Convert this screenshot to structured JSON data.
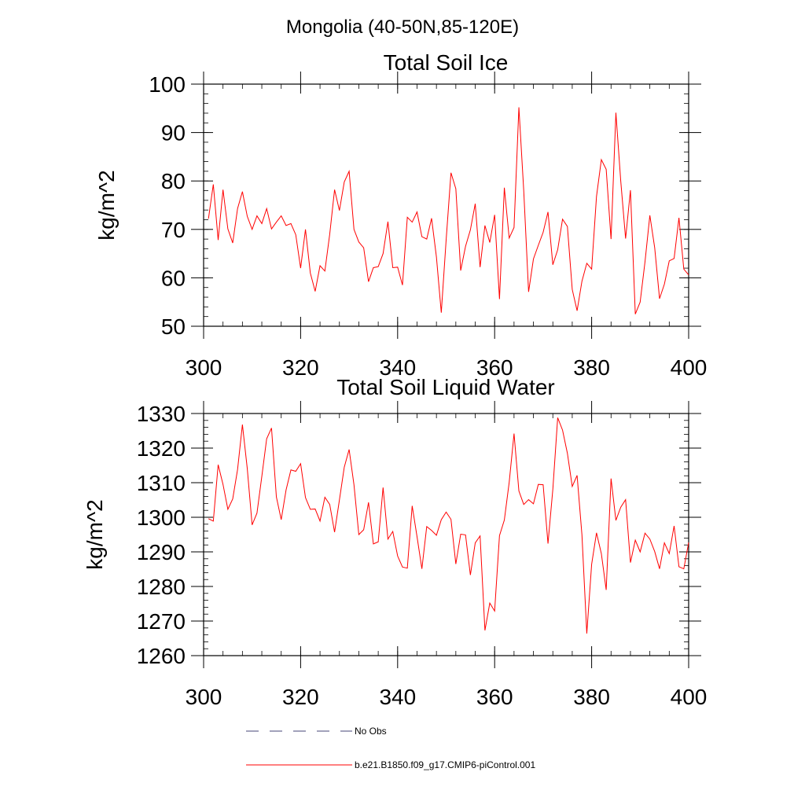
{
  "title": "Mongolia (40-50N,85-120E)",
  "chart_data": [
    {
      "type": "line",
      "title": "Total Soil Ice",
      "ylabel": "kg/m^2",
      "xlabel": "",
      "xlim": [
        300,
        400
      ],
      "ylim": [
        50,
        100
      ],
      "xticks": [
        300,
        320,
        340,
        360,
        380,
        400
      ],
      "yticks": [
        50,
        60,
        70,
        80,
        90,
        100
      ],
      "grid": false,
      "series": [
        {
          "name": "b.e21.B1850.f09_g17.CMIP6-piControl.001",
          "color": "#ff0000",
          "x": [
            301,
            302,
            303,
            304,
            305,
            306,
            307,
            308,
            309,
            310,
            311,
            312,
            313,
            314,
            315,
            316,
            317,
            318,
            319,
            320,
            321,
            322,
            323,
            324,
            325,
            326,
            327,
            328,
            329,
            330,
            331,
            332,
            333,
            334,
            335,
            336,
            337,
            338,
            339,
            340,
            341,
            342,
            343,
            344,
            345,
            346,
            347,
            348,
            349,
            350,
            351,
            352,
            353,
            354,
            355,
            356,
            357,
            358,
            359,
            360,
            361,
            362,
            363,
            364,
            365,
            366,
            367,
            368,
            369,
            370,
            371,
            372,
            373,
            374,
            375,
            376,
            377,
            378,
            379,
            380,
            381,
            382,
            383,
            384,
            385,
            386,
            387,
            388,
            389,
            390,
            391,
            392,
            393,
            394,
            395,
            396,
            397,
            398,
            399,
            400
          ],
          "y": [
            72.2,
            79.3,
            67.8,
            78.2,
            70.1,
            67.2,
            74.3,
            77.8,
            72.7,
            70.0,
            72.8,
            71.2,
            74.3,
            70.1,
            71.5,
            72.8,
            70.8,
            71.2,
            68.9,
            62.0,
            70.0,
            61.0,
            57.2,
            62.5,
            61.4,
            69.0,
            78.2,
            73.9,
            79.8,
            82.0,
            70.0,
            67.4,
            66.2,
            59.2,
            62.1,
            62.3,
            65.0,
            71.6,
            62.1,
            62.2,
            58.5,
            72.5,
            71.5,
            73.6,
            68.5,
            68.0,
            72.3,
            64.3,
            52.8,
            67.8,
            81.7,
            78.4,
            61.5,
            66.5,
            69.9,
            75.3,
            62.2,
            70.8,
            67.3,
            73.0,
            55.6,
            78.6,
            68.2,
            70.4,
            95.2,
            78.0,
            57.1,
            63.9,
            66.7,
            69.4,
            73.6,
            62.7,
            65.8,
            72.1,
            70.6,
            57.6,
            53.2,
            59.3,
            63.0,
            61.8,
            76.8,
            84.4,
            82.4,
            68.0,
            94.1,
            80.0,
            68.1,
            78.1,
            52.5,
            55.0,
            63.3,
            72.9,
            66.2,
            55.7,
            58.7,
            63.5,
            64.0,
            72.4,
            61.8,
            60.6
          ]
        }
      ]
    },
    {
      "type": "line",
      "title": "Total Soil Liquid Water",
      "ylabel": "kg/m^2",
      "xlabel": "",
      "xlim": [
        300,
        400
      ],
      "ylim": [
        1260,
        1330
      ],
      "xticks": [
        300,
        320,
        340,
        360,
        380,
        400
      ],
      "yticks": [
        1260,
        1270,
        1280,
        1290,
        1300,
        1310,
        1320,
        1330
      ],
      "grid": false,
      "series": [
        {
          "name": "b.e21.B1850.f09_g17.CMIP6-piControl.001",
          "color": "#ff0000",
          "x": [
            301,
            302,
            303,
            304,
            305,
            306,
            307,
            308,
            309,
            310,
            311,
            312,
            313,
            314,
            315,
            316,
            317,
            318,
            319,
            320,
            321,
            322,
            323,
            324,
            325,
            326,
            327,
            328,
            329,
            330,
            331,
            332,
            333,
            334,
            335,
            336,
            337,
            338,
            339,
            340,
            341,
            342,
            343,
            344,
            345,
            346,
            347,
            348,
            349,
            350,
            351,
            352,
            353,
            354,
            355,
            356,
            357,
            358,
            359,
            360,
            361,
            362,
            363,
            364,
            365,
            366,
            367,
            368,
            369,
            370,
            371,
            372,
            373,
            374,
            375,
            376,
            377,
            378,
            379,
            380,
            381,
            382,
            383,
            384,
            385,
            386,
            387,
            388,
            389,
            390,
            391,
            392,
            393,
            394,
            395,
            396,
            397,
            398,
            399,
            400
          ],
          "y": [
            1299.6,
            1298.9,
            1315.2,
            1309.5,
            1302.3,
            1305.3,
            1313.8,
            1326.8,
            1314.1,
            1297.8,
            1301.2,
            1311.8,
            1322.7,
            1325.8,
            1305.9,
            1299.3,
            1307.9,
            1313.7,
            1313.3,
            1315.5,
            1305.7,
            1302.3,
            1302.4,
            1298.9,
            1305.8,
            1303.7,
            1295.7,
            1305.0,
            1314.5,
            1319.6,
            1309.4,
            1295.0,
            1296.4,
            1304.3,
            1292.3,
            1292.9,
            1308.6,
            1293.7,
            1295.9,
            1288.8,
            1285.6,
            1285.3,
            1303.3,
            1294.4,
            1285.1,
            1297.3,
            1296.2,
            1294.8,
            1299.3,
            1301.5,
            1299.4,
            1286.5,
            1295.1,
            1294.9,
            1283.3,
            1292.6,
            1294.6,
            1267.3,
            1275.2,
            1272.9,
            1294.7,
            1299.2,
            1310.1,
            1324.2,
            1307.6,
            1303.7,
            1305.1,
            1303.9,
            1309.5,
            1309.4,
            1292.4,
            1308.1,
            1328.8,
            1325.2,
            1318.5,
            1308.9,
            1312.1,
            1294.9,
            1266.4,
            1286.4,
            1295.5,
            1289.5,
            1279.0,
            1311.2,
            1299.1,
            1302.9,
            1305.1,
            1286.9,
            1293.4,
            1290.0,
            1295.4,
            1293.7,
            1290.1,
            1285.1,
            1292.6,
            1289.5,
            1297.5,
            1285.7,
            1285.1,
            1292.7
          ]
        }
      ]
    }
  ],
  "legend": {
    "items": [
      {
        "label": "No Obs",
        "color": "#444477",
        "style": "dashed"
      },
      {
        "label": "b.e21.B1850.f09_g17.CMIP6-piControl.001",
        "color": "#ff0000",
        "style": "solid"
      }
    ]
  }
}
